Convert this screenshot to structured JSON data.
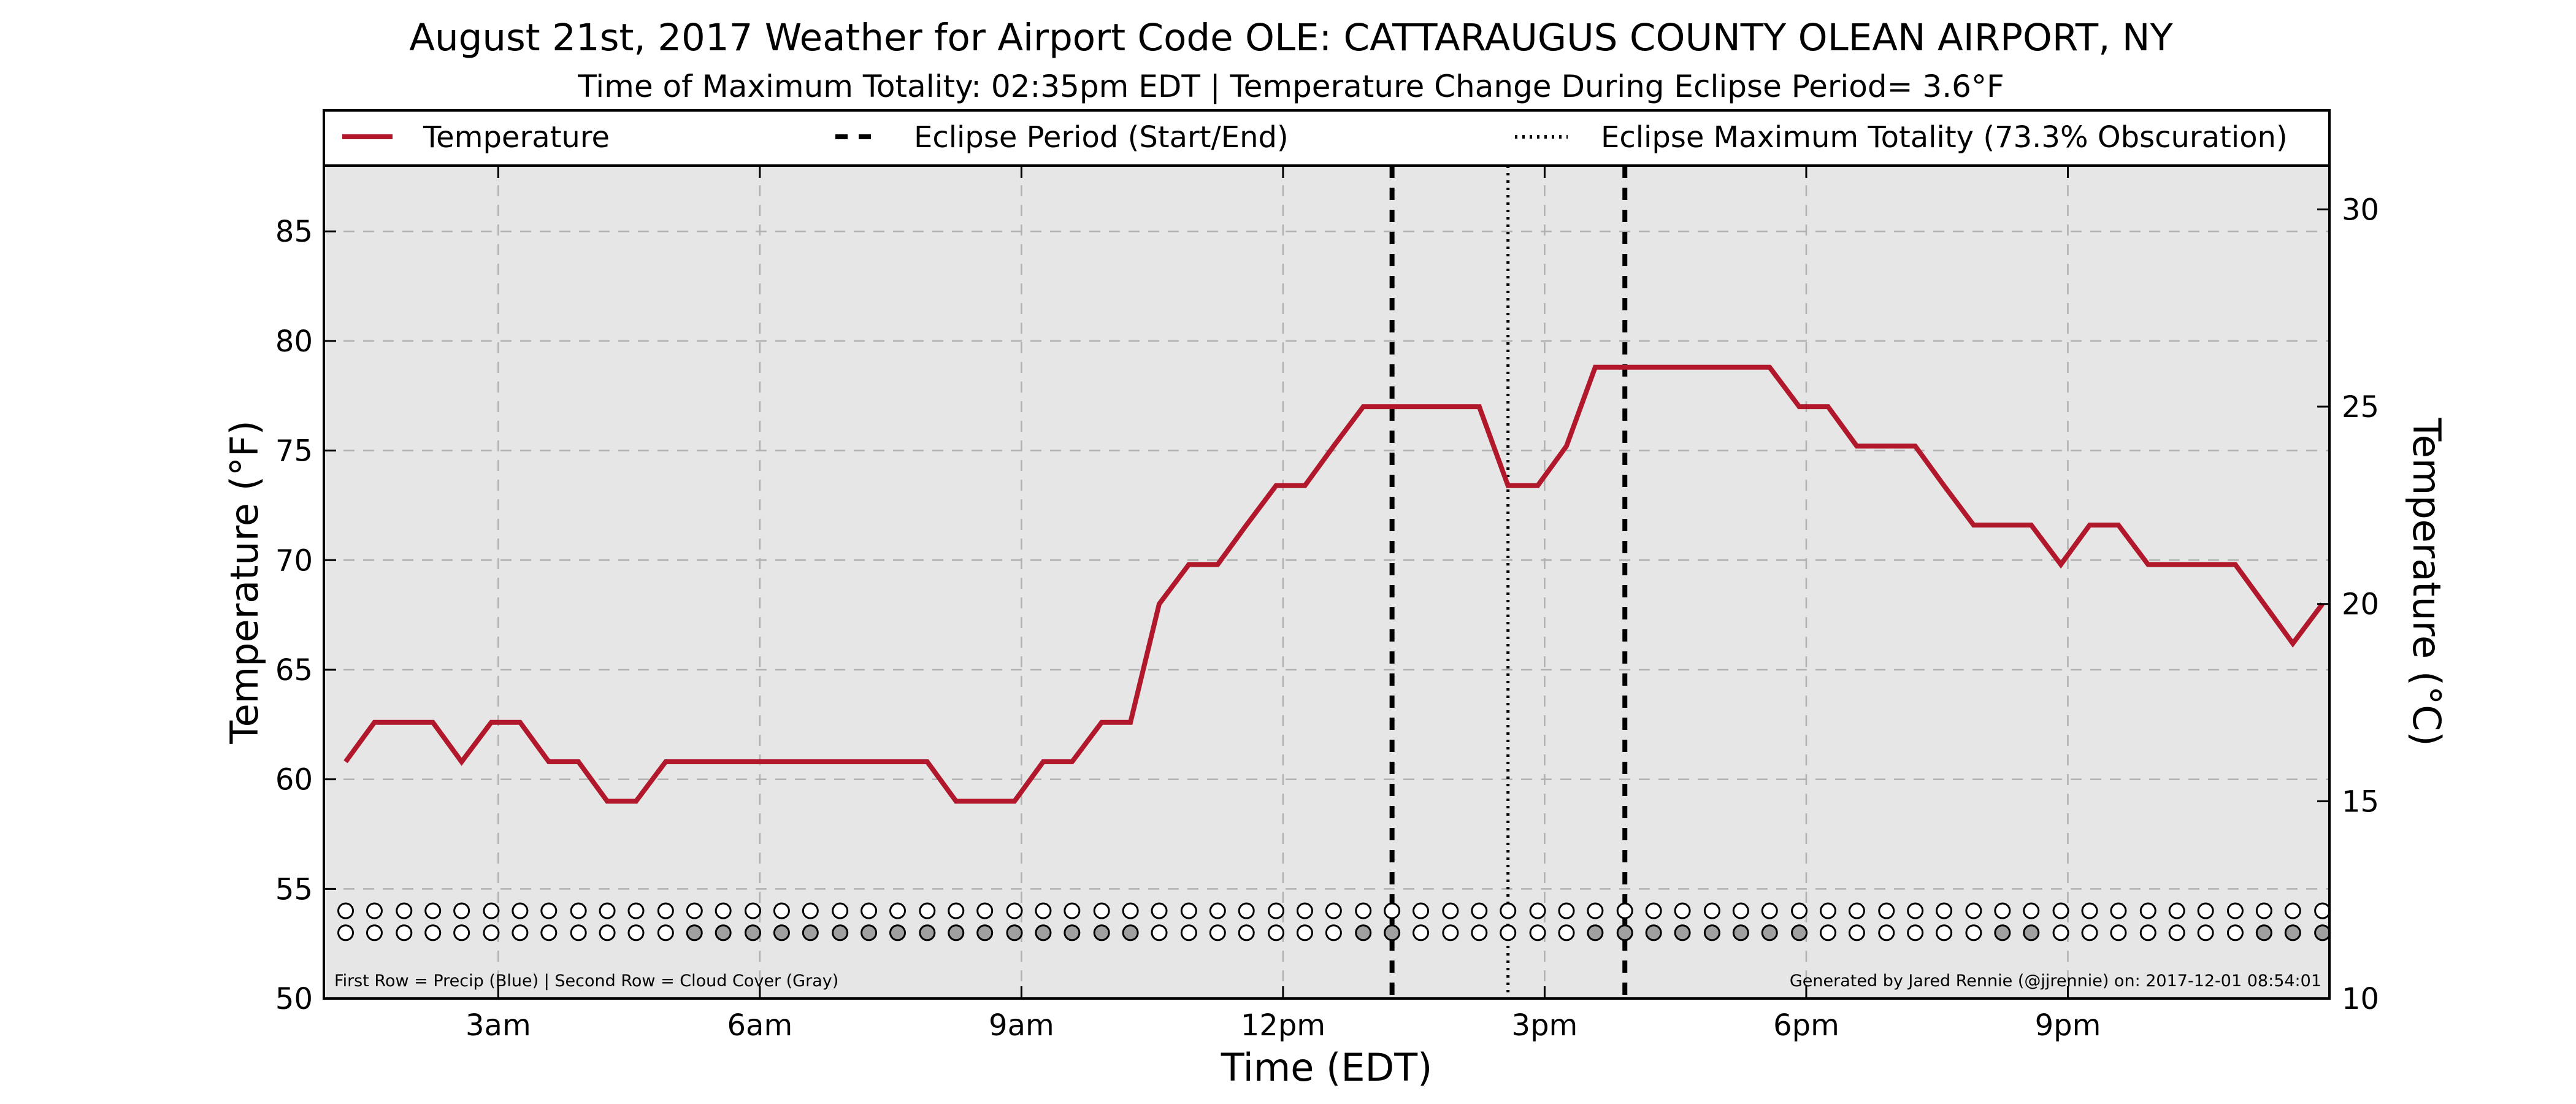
{
  "chart_data": {
    "type": "line",
    "title": "August 21st, 2017 Weather for Airport Code OLE: CATTARAUGUS COUNTY OLEAN AIRPORT, NY",
    "subtitle": "Time of Maximum Totality: 02:35pm EDT | Temperature Change During Eclipse Period= 3.6°F",
    "xlabel": "Time (EDT)",
    "ylabel": "Temperature (°F)",
    "ylabel_right": "Temperature (°C)",
    "xlim": [
      1.0,
      24.0
    ],
    "ylim": [
      50,
      88
    ],
    "ylim_right": [
      10,
      31.11
    ],
    "x_ticks": [
      {
        "x": 3,
        "label": "3am"
      },
      {
        "x": 6,
        "label": "6am"
      },
      {
        "x": 9,
        "label": "9am"
      },
      {
        "x": 12,
        "label": "12pm"
      },
      {
        "x": 15,
        "label": "3pm"
      },
      {
        "x": 18,
        "label": "6pm"
      },
      {
        "x": 21,
        "label": "9pm"
      }
    ],
    "y_ticks": [
      50,
      55,
      60,
      65,
      70,
      75,
      80,
      85
    ],
    "y_ticks_right": [
      10,
      15,
      20,
      25,
      30
    ],
    "grid": true,
    "legend_position": "top",
    "legend": [
      {
        "label": "Temperature",
        "style": "solid",
        "color": "#b2182b"
      },
      {
        "label": "Eclipse Period (Start/End)",
        "style": "dashed",
        "color": "#000000"
      },
      {
        "label": "Eclipse Maximum Totality (73.3% Obscuration)",
        "style": "dotted",
        "color": "#000000"
      }
    ],
    "series": [
      {
        "label": "Temperature",
        "color": "#b2182b",
        "x": [
          1.25,
          1.58,
          1.92,
          2.25,
          2.58,
          2.92,
          3.25,
          3.58,
          3.92,
          4.25,
          4.58,
          4.92,
          5.25,
          5.58,
          5.92,
          6.25,
          6.58,
          6.92,
          7.25,
          7.58,
          7.92,
          8.25,
          8.58,
          8.92,
          9.25,
          9.58,
          9.92,
          10.25,
          10.58,
          10.92,
          11.25,
          11.58,
          11.92,
          12.25,
          12.58,
          12.92,
          13.25,
          13.58,
          13.92,
          14.25,
          14.58,
          14.92,
          15.25,
          15.58,
          15.92,
          16.25,
          16.58,
          16.92,
          17.25,
          17.58,
          17.92,
          18.25,
          18.58,
          18.92,
          19.25,
          19.58,
          19.92,
          20.25,
          20.58,
          20.92,
          21.25,
          21.58,
          21.92,
          22.25,
          22.58,
          22.92,
          23.25,
          23.58,
          23.92
        ],
        "y": [
          60.8,
          62.6,
          62.6,
          62.6,
          60.8,
          62.6,
          62.6,
          60.8,
          60.8,
          59.0,
          59.0,
          60.8,
          60.8,
          60.8,
          60.8,
          60.8,
          60.8,
          60.8,
          60.8,
          60.8,
          60.8,
          59.0,
          59.0,
          59.0,
          60.8,
          60.8,
          62.6,
          62.6,
          68.0,
          69.8,
          69.8,
          71.6,
          73.4,
          73.4,
          75.2,
          77.0,
          77.0,
          77.0,
          77.0,
          77.0,
          73.4,
          73.4,
          75.2,
          78.8,
          78.8,
          78.8,
          78.8,
          78.8,
          78.8,
          78.8,
          77.0,
          77.0,
          75.2,
          75.2,
          75.2,
          73.4,
          71.6,
          71.6,
          71.6,
          69.8,
          71.6,
          71.6,
          69.8,
          69.8,
          69.8,
          69.8,
          68.0,
          66.2,
          68.0
        ]
      }
    ],
    "eclipse_start": 13.25,
    "eclipse_end": 15.92,
    "eclipse_max": 14.58,
    "marker_rows": {
      "precip_row_y": 54.0,
      "cloud_row_y": 53.0,
      "precip_filled": [],
      "cloud_filled_times": [
        5.25,
        5.58,
        5.92,
        6.25,
        6.58,
        6.92,
        7.25,
        7.58,
        7.92,
        8.25,
        8.58,
        8.92,
        9.25,
        9.58,
        9.92,
        10.25,
        12.92,
        13.25,
        15.58,
        15.92,
        16.25,
        16.58,
        16.92,
        17.25,
        17.58,
        17.92,
        20.25,
        20.58,
        23.25,
        23.58,
        23.92
      ],
      "filled_color": "#a0a0a0",
      "empty_color": "#ffffff"
    },
    "annotation_left": "First Row = Precip (Blue) | Second Row = Cloud Cover (Gray)",
    "annotation_right": "Generated by Jared Rennie (@jjrennie) on: 2017-12-01 08:54:01",
    "colors": {
      "plot_background": "#e6e6e6",
      "grid": "#b0b0b0",
      "temperature": "#b2182b"
    }
  }
}
